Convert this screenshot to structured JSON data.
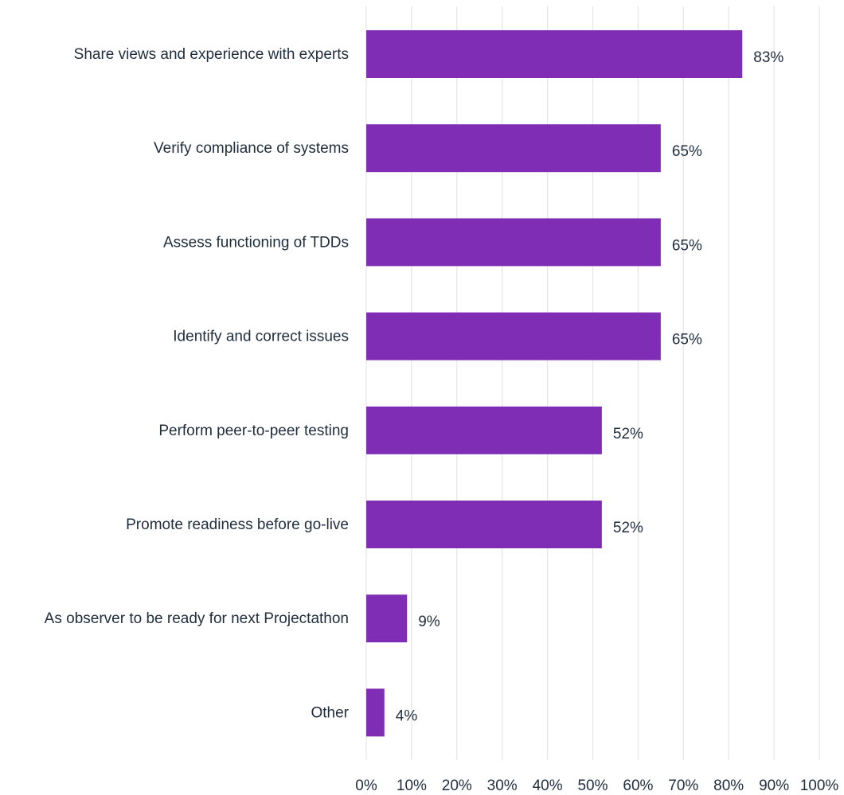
{
  "chart_data": {
    "type": "bar",
    "orientation": "horizontal",
    "categories": [
      "Share views and experience with experts",
      "Verify compliance of systems",
      "Assess functioning of TDDs",
      "Identify and correct issues",
      "Perform peer-to-peer testing",
      "Promote readiness before go-live",
      "As observer to be ready for next Projectathon",
      "Other"
    ],
    "values": [
      83,
      65,
      65,
      65,
      52,
      52,
      9,
      4
    ],
    "value_labels": [
      "83%",
      "65%",
      "65%",
      "65%",
      "52%",
      "52%",
      "9%",
      "4%"
    ],
    "xlim": [
      0,
      100
    ],
    "x_ticks": [
      "0%",
      "10%",
      "20%",
      "30%",
      "40%",
      "50%",
      "60%",
      "70%",
      "80%",
      "90%",
      "100%"
    ],
    "grid": true,
    "legend": "none",
    "title": "",
    "xlabel": "",
    "ylabel": "",
    "colors": {
      "bar": "#7f2db5",
      "text": "#1f2d3d",
      "grid": "#e6e6e6"
    }
  }
}
